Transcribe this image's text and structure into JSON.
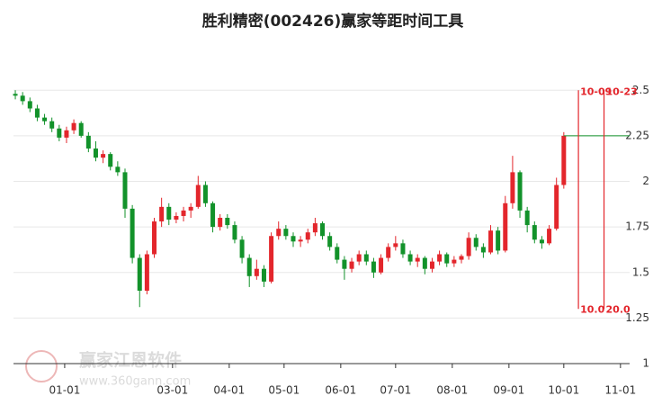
{
  "chart_data": {
    "type": "candlestick",
    "title": "胜利精密(002426)赢家等距时间工具",
    "watermark": {
      "name": "赢家江恩软件",
      "url": "www.360gann.com"
    },
    "xlim": [
      "12-04",
      "11-06"
    ],
    "xticks": [
      "01-01",
      "03-01",
      "04-01",
      "05-01",
      "06-01",
      "07-01",
      "08-01",
      "09-01",
      "10-01",
      "11-01"
    ],
    "ylim": [
      1,
      2.6
    ],
    "yticks": [
      1,
      1.25,
      1.5,
      1.75,
      2,
      2.25,
      2.5
    ],
    "grid": true,
    "up_color": "#e3262c",
    "down_color": "#12922a",
    "x": [
      "12-05",
      "12-09",
      "12-13",
      "12-17",
      "12-21",
      "12-25",
      "12-29",
      "01-02",
      "01-06",
      "01-10",
      "01-14",
      "01-18",
      "01-22",
      "01-26",
      "01-30",
      "02-03",
      "02-07",
      "02-11",
      "02-15",
      "02-19",
      "02-23",
      "02-27",
      "03-03",
      "03-07",
      "03-11",
      "03-15",
      "03-19",
      "03-23",
      "03-27",
      "03-31",
      "04-04",
      "04-08",
      "04-12",
      "04-16",
      "04-20",
      "04-24",
      "04-28",
      "05-02",
      "05-06",
      "05-10",
      "05-14",
      "05-18",
      "05-22",
      "05-26",
      "05-30",
      "06-03",
      "06-07",
      "06-11",
      "06-15",
      "06-19",
      "06-23",
      "06-27",
      "07-01",
      "07-05",
      "07-09",
      "07-13",
      "07-17",
      "07-21",
      "07-25",
      "07-29",
      "08-02",
      "08-06",
      "08-10",
      "08-14",
      "08-18",
      "08-22",
      "08-26",
      "08-30",
      "09-03",
      "09-07",
      "09-11",
      "09-15",
      "09-19",
      "09-23",
      "09-27",
      "10-01"
    ],
    "open": [
      2.48,
      2.47,
      2.44,
      2.4,
      2.35,
      2.33,
      2.29,
      2.24,
      2.28,
      2.32,
      2.25,
      2.18,
      2.13,
      2.15,
      2.08,
      2.05,
      1.85,
      1.58,
      1.4,
      1.6,
      1.78,
      1.86,
      1.79,
      1.81,
      1.84,
      1.86,
      1.98,
      1.88,
      1.75,
      1.8,
      1.76,
      1.68,
      1.58,
      1.48,
      1.52,
      1.45,
      1.7,
      1.74,
      1.7,
      1.67,
      1.68,
      1.72,
      1.77,
      1.7,
      1.64,
      1.57,
      1.52,
      1.56,
      1.6,
      1.56,
      1.5,
      1.58,
      1.64,
      1.66,
      1.6,
      1.56,
      1.58,
      1.52,
      1.56,
      1.6,
      1.55,
      1.57,
      1.59,
      1.69,
      1.64,
      1.61,
      1.73,
      1.62,
      1.88,
      2.05,
      1.84,
      1.76,
      1.68,
      1.66,
      1.74,
      1.98
    ],
    "high": [
      2.5,
      2.49,
      2.46,
      2.42,
      2.37,
      2.35,
      2.31,
      2.3,
      2.34,
      2.33,
      2.27,
      2.22,
      2.17,
      2.16,
      2.11,
      2.07,
      1.87,
      1.6,
      1.62,
      1.8,
      1.91,
      1.88,
      1.83,
      1.86,
      1.88,
      2.03,
      2.0,
      1.89,
      1.82,
      1.82,
      1.78,
      1.7,
      1.6,
      1.57,
      1.54,
      1.72,
      1.78,
      1.76,
      1.72,
      1.7,
      1.74,
      1.8,
      1.78,
      1.72,
      1.66,
      1.59,
      1.58,
      1.62,
      1.62,
      1.58,
      1.6,
      1.66,
      1.7,
      1.68,
      1.62,
      1.6,
      1.59,
      1.58,
      1.62,
      1.61,
      1.59,
      1.6,
      1.72,
      1.71,
      1.66,
      1.76,
      1.75,
      1.92,
      2.14,
      2.06,
      1.86,
      1.78,
      1.7,
      1.76,
      2.02,
      2.27
    ],
    "low": [
      2.45,
      2.42,
      2.38,
      2.33,
      2.31,
      2.27,
      2.22,
      2.21,
      2.26,
      2.24,
      2.16,
      2.11,
      2.1,
      2.06,
      2.03,
      1.8,
      1.55,
      1.31,
      1.38,
      1.58,
      1.75,
      1.76,
      1.77,
      1.78,
      1.8,
      1.85,
      1.86,
      1.72,
      1.73,
      1.74,
      1.66,
      1.55,
      1.42,
      1.46,
      1.42,
      1.44,
      1.68,
      1.68,
      1.64,
      1.64,
      1.66,
      1.7,
      1.68,
      1.62,
      1.55,
      1.46,
      1.5,
      1.54,
      1.54,
      1.47,
      1.49,
      1.56,
      1.62,
      1.58,
      1.54,
      1.53,
      1.49,
      1.5,
      1.54,
      1.53,
      1.53,
      1.55,
      1.57,
      1.62,
      1.58,
      1.6,
      1.6,
      1.61,
      1.85,
      1.8,
      1.72,
      1.66,
      1.63,
      1.65,
      1.73,
      1.96
    ],
    "close": [
      2.47,
      2.44,
      2.4,
      2.35,
      2.33,
      2.29,
      2.24,
      2.28,
      2.32,
      2.25,
      2.18,
      2.13,
      2.15,
      2.08,
      2.05,
      1.85,
      1.58,
      1.4,
      1.6,
      1.78,
      1.86,
      1.79,
      1.81,
      1.84,
      1.86,
      1.98,
      1.88,
      1.75,
      1.8,
      1.76,
      1.68,
      1.58,
      1.48,
      1.52,
      1.45,
      1.7,
      1.74,
      1.7,
      1.67,
      1.68,
      1.72,
      1.77,
      1.7,
      1.64,
      1.57,
      1.52,
      1.56,
      1.6,
      1.56,
      1.5,
      1.58,
      1.64,
      1.66,
      1.6,
      1.56,
      1.58,
      1.52,
      1.56,
      1.6,
      1.55,
      1.57,
      1.59,
      1.69,
      1.64,
      1.61,
      1.73,
      1.62,
      1.88,
      2.05,
      1.84,
      1.76,
      1.68,
      1.66,
      1.74,
      1.98,
      2.25
    ],
    "time_lines": [
      {
        "date": "10-09",
        "label": "10.0"
      },
      {
        "date": "10-23",
        "label": "20.0"
      }
    ],
    "time_line_range": [
      1.3,
      2.5
    ],
    "time_line_color": "#e3262c"
  }
}
